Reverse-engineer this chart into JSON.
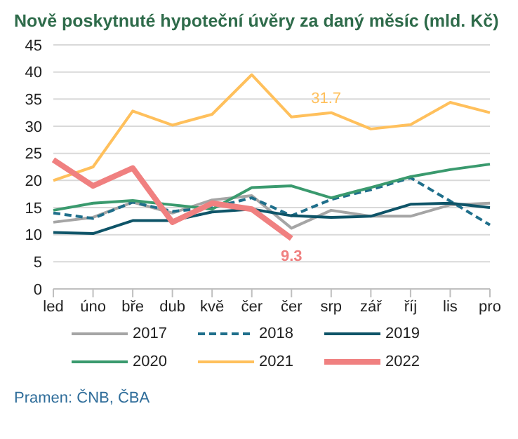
{
  "chart_data": {
    "type": "line",
    "title": "Nově poskytnuté hypoteční úvěry za daný měsíc (mld. Kč)",
    "categories": [
      "led",
      "úno",
      "bře",
      "dub",
      "kvě",
      "čer",
      "čer",
      "srp",
      "zář",
      "říj",
      "lis",
      "pro"
    ],
    "series": [
      {
        "name": "2017",
        "color": "#a5a5a5",
        "values": [
          12.3,
          13.2,
          16.0,
          14.0,
          16.4,
          17.2,
          11.2,
          14.5,
          13.4,
          13.4,
          15.5,
          15.8
        ]
      },
      {
        "name": "2018",
        "color": "#1f6f8b",
        "line_style": "dashed",
        "values": [
          14.0,
          13.0,
          16.0,
          14.3,
          15.0,
          16.8,
          13.5,
          16.5,
          18.3,
          20.5,
          16.2,
          11.8
        ]
      },
      {
        "name": "2019",
        "color": "#0e5468",
        "values": [
          10.4,
          10.2,
          12.6,
          12.6,
          14.2,
          14.7,
          13.5,
          13.2,
          13.4,
          15.6,
          15.8,
          15.0
        ]
      },
      {
        "name": "2020",
        "color": "#3a9a6e",
        "values": [
          14.5,
          15.8,
          16.3,
          15.5,
          14.7,
          18.7,
          19.0,
          16.8,
          18.7,
          20.7,
          22.0,
          23.0
        ]
      },
      {
        "name": "2021",
        "color": "#ffc05c",
        "values": [
          20.0,
          22.5,
          32.8,
          30.2,
          32.2,
          39.5,
          31.7,
          32.5,
          29.5,
          30.3,
          34.4,
          32.5
        ],
        "value_labels": [
          null,
          null,
          null,
          null,
          null,
          null,
          "31.7",
          null,
          null,
          null,
          null,
          null
        ]
      },
      {
        "name": "2022",
        "color": "#f08080",
        "values": [
          23.8,
          19.0,
          22.3,
          12.3,
          15.8,
          14.7,
          9.3,
          null,
          null,
          null,
          null,
          null
        ],
        "value_labels": [
          null,
          null,
          null,
          null,
          null,
          null,
          "9.3",
          null,
          null,
          null,
          null,
          null
        ]
      }
    ],
    "ylim": [
      0,
      45
    ],
    "yticks": [
      0,
      5,
      10,
      15,
      20,
      25,
      30,
      35,
      40,
      45
    ],
    "grid": "y",
    "legend": "bottom",
    "marker": "none",
    "line_style": "solid",
    "annotations": [
      "Pramen: ČNB, ČBA"
    ]
  }
}
